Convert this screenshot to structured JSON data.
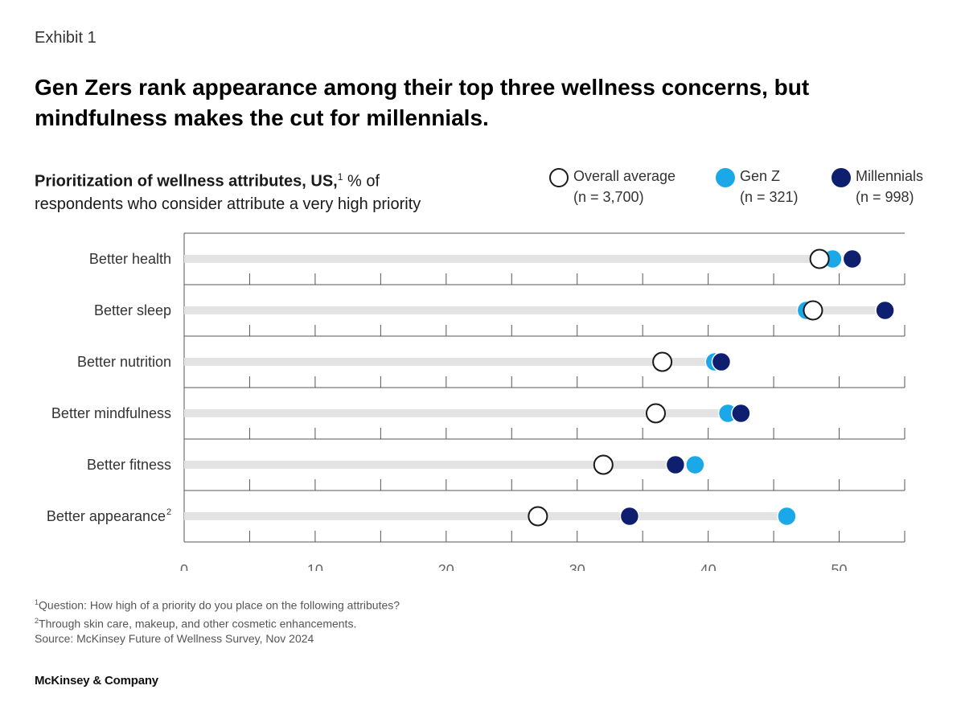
{
  "header": {
    "exhibit": "Exhibit 1",
    "title": "Gen Zers rank appearance among their top three wellness concerns, but mindfulness makes the cut for millennials."
  },
  "subtitle": {
    "bold": "Prioritization of wellness attributes, US,",
    "marker": "1",
    "rest1": " % of",
    "rest2": "respondents who consider attribute a very high priority"
  },
  "legend": [
    {
      "label": "Overall average",
      "n": "(n = 3,700)",
      "color": "#ffffff",
      "border": "#1a1a1a"
    },
    {
      "label": "Gen Z",
      "n": "(n = 321)",
      "color": "#1aa8e8",
      "border": "#1aa8e8"
    },
    {
      "label": "Millennials",
      "n": "(n = 998)",
      "color": "#0d1f6e",
      "border": "#0d1f6e"
    }
  ],
  "chart_data": {
    "type": "scatter",
    "title": "Prioritization of wellness attributes, US, % of respondents who consider attribute a very high priority",
    "categories": [
      "Better health",
      "Better sleep",
      "Better nutrition",
      "Better mindfulness",
      "Better fitness",
      "Better appearance"
    ],
    "category_markers": [
      "",
      "",
      "",
      "",
      "",
      "2"
    ],
    "series": [
      {
        "name": "Overall average",
        "values": [
          48.5,
          48.0,
          36.5,
          36.0,
          32.0,
          27.0
        ]
      },
      {
        "name": "Gen Z",
        "values": [
          49.5,
          47.5,
          40.5,
          41.5,
          39.0,
          46.0
        ]
      },
      {
        "name": "Millennials",
        "values": [
          51.0,
          53.5,
          41.0,
          42.5,
          37.5,
          34.0
        ]
      }
    ],
    "xlim": [
      0,
      55
    ],
    "xticks": [
      0,
      10,
      20,
      30,
      40,
      50
    ],
    "xlabel": "",
    "ylabel": ""
  },
  "footnotes": {
    "note1_marker": "1",
    "note1": "Question: How high of a priority do you place on the following attributes?",
    "note2_marker": "2",
    "note2": "Through skin care, makeup, and other cosmetic enhancements.",
    "source": "Source: McKinsey Future of Wellness Survey, Nov 2024"
  },
  "brand": "McKinsey & Company"
}
